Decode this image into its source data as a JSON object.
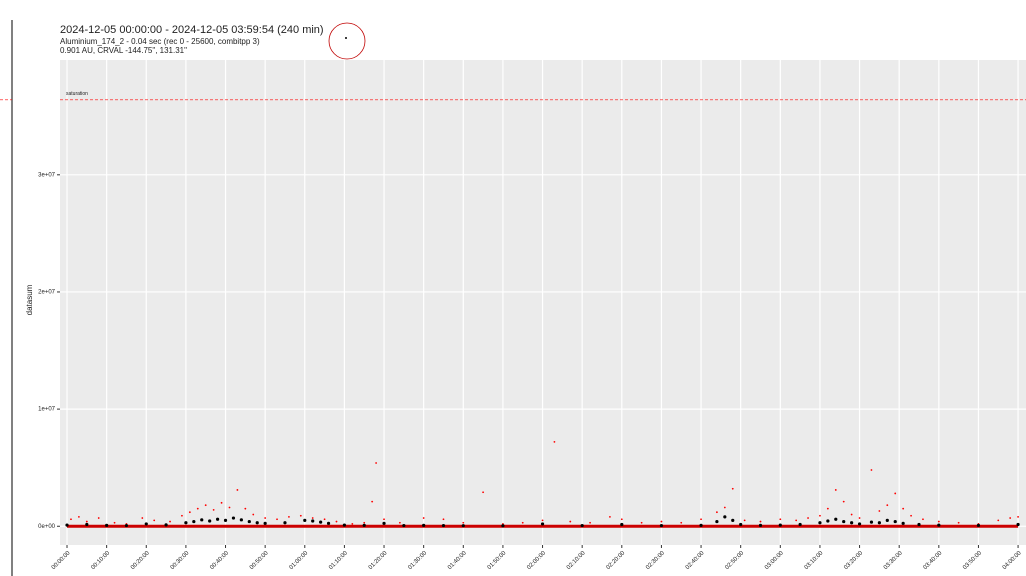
{
  "chart_data": {
    "type": "scatter",
    "title": "2024-12-05 00:00:00 - 2024-12-05 03:59:54 (240 min)",
    "subtitle": [
      "Aluminium_174_2 - 0.04 sec (rec 0 - 25600, combitpp 3)",
      "0.901 AU, CRVAL -144.75\", 131.31\""
    ],
    "ylabel": "datasum",
    "annotation": {
      "text": "saturation",
      "value": 36400000,
      "color": "#ff0000"
    },
    "xlim": [
      -1.77,
      242
    ],
    "ylim": [
      -1600000,
      39800000
    ],
    "xticks": [
      {
        "value": 0,
        "label": "00:00:00"
      },
      {
        "value": 10,
        "label": "00:10:00"
      },
      {
        "value": 20,
        "label": "00:20:00"
      },
      {
        "value": 30,
        "label": "00:30:00"
      },
      {
        "value": 40,
        "label": "00:40:00"
      },
      {
        "value": 50,
        "label": "00:50:00"
      },
      {
        "value": 60,
        "label": "01:00:00"
      },
      {
        "value": 70,
        "label": "01:10:00"
      },
      {
        "value": 80,
        "label": "01:20:00"
      },
      {
        "value": 90,
        "label": "01:30:00"
      },
      {
        "value": 100,
        "label": "01:40:00"
      },
      {
        "value": 110,
        "label": "01:50:00"
      },
      {
        "value": 120,
        "label": "02:00:00"
      },
      {
        "value": 130,
        "label": "02:10:00"
      },
      {
        "value": 140,
        "label": "02:20:00"
      },
      {
        "value": 150,
        "label": "02:30:00"
      },
      {
        "value": 160,
        "label": "02:40:00"
      },
      {
        "value": 170,
        "label": "02:50:00"
      },
      {
        "value": 180,
        "label": "03:00:00"
      },
      {
        "value": 190,
        "label": "03:10:00"
      },
      {
        "value": 200,
        "label": "03:20:00"
      },
      {
        "value": 210,
        "label": "03:30:00"
      },
      {
        "value": 220,
        "label": "03:40:00"
      },
      {
        "value": 230,
        "label": "03:50:00"
      },
      {
        "value": 240,
        "label": "04:00:00"
      }
    ],
    "yticks": [
      {
        "value": 0,
        "label": "0e+00"
      },
      {
        "value": 10000000,
        "label": "1e+07"
      },
      {
        "value": 20000000,
        "label": "2e+07"
      },
      {
        "value": 30000000,
        "label": "3e+07"
      }
    ],
    "grid": true,
    "series": [
      {
        "style": "line",
        "color": "#cc0000",
        "x": [
          0,
          240
        ],
        "values": [
          0,
          0
        ]
      },
      {
        "style": "point",
        "color": "#ff0000",
        "x": [
          1,
          3,
          5,
          8,
          12,
          15,
          19,
          22,
          26,
          29,
          31,
          33,
          35,
          37,
          39,
          41,
          43,
          45,
          47,
          50,
          53,
          56,
          59,
          62,
          65,
          68,
          72,
          75,
          77,
          78,
          80,
          84,
          90,
          95,
          100,
          105,
          110,
          115,
          120,
          123,
          127,
          132,
          137,
          140,
          145,
          150,
          155,
          160,
          164,
          166,
          168,
          171,
          175,
          180,
          184,
          187,
          190,
          192,
          194,
          196,
          198,
          200,
          203,
          205,
          207,
          209,
          211,
          213,
          216,
          220,
          225,
          230,
          235,
          238,
          240
        ],
        "values": [
          600000,
          800000,
          400000,
          700000,
          300000,
          200000,
          700000,
          500000,
          400000,
          900000,
          1200000,
          1500000,
          1800000,
          1400000,
          2000000,
          1600000,
          3100000,
          1500000,
          1000000,
          700000,
          600000,
          800000,
          900000,
          700000,
          600000,
          400000,
          200000,
          300000,
          2100000,
          5400000,
          600000,
          300000,
          700000,
          600000,
          300000,
          2900000,
          200000,
          300000,
          500000,
          7200000,
          400000,
          300000,
          800000,
          600000,
          300000,
          400000,
          300000,
          600000,
          1200000,
          1600000,
          3200000,
          500000,
          400000,
          600000,
          500000,
          700000,
          900000,
          1500000,
          3100000,
          2100000,
          1000000,
          700000,
          4800000,
          1300000,
          1800000,
          2800000,
          1500000,
          900000,
          600000,
          400000,
          300000,
          200000,
          500000,
          700000,
          800000
        ]
      },
      {
        "style": "point",
        "color": "#000000",
        "x": [
          0,
          5,
          10,
          15,
          20,
          25,
          30,
          32,
          34,
          36,
          38,
          40,
          42,
          44,
          46,
          48,
          50,
          55,
          60,
          62,
          64,
          66,
          70,
          75,
          80,
          85,
          90,
          95,
          100,
          110,
          120,
          130,
          140,
          150,
          160,
          164,
          166,
          168,
          170,
          175,
          180,
          185,
          190,
          192,
          194,
          196,
          198,
          200,
          203,
          205,
          207,
          209,
          211,
          215,
          220,
          230,
          240
        ],
        "values": [
          100000,
          150000,
          80000,
          60000,
          200000,
          120000,
          300000,
          400000,
          550000,
          450000,
          600000,
          500000,
          700000,
          550000,
          400000,
          300000,
          250000,
          300000,
          500000,
          450000,
          350000,
          250000,
          100000,
          80000,
          250000,
          60000,
          80000,
          60000,
          50000,
          40000,
          200000,
          60000,
          150000,
          60000,
          80000,
          400000,
          800000,
          500000,
          150000,
          80000,
          100000,
          150000,
          300000,
          450000,
          600000,
          400000,
          300000,
          200000,
          350000,
          300000,
          500000,
          400000,
          250000,
          150000,
          100000,
          80000,
          150000
        ]
      }
    ]
  }
}
